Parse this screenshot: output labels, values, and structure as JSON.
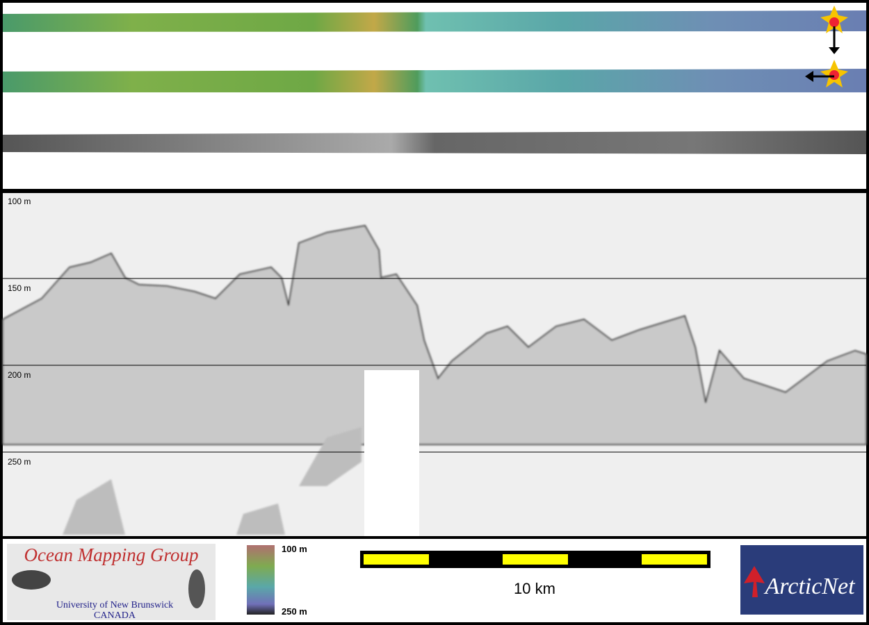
{
  "profile": {
    "depth_labels": [
      "100 m",
      "150 m",
      "200 m",
      "250 m"
    ]
  },
  "logo_left": {
    "title": "Ocean Mapping Group",
    "line1": "University of New Brunswick",
    "line2": "CANADA"
  },
  "colorbar": {
    "top_label": "100 m",
    "bottom_label": "250 m"
  },
  "scale_bar": {
    "label": "10 km"
  },
  "logo_right": {
    "title": "ArcticNet"
  }
}
